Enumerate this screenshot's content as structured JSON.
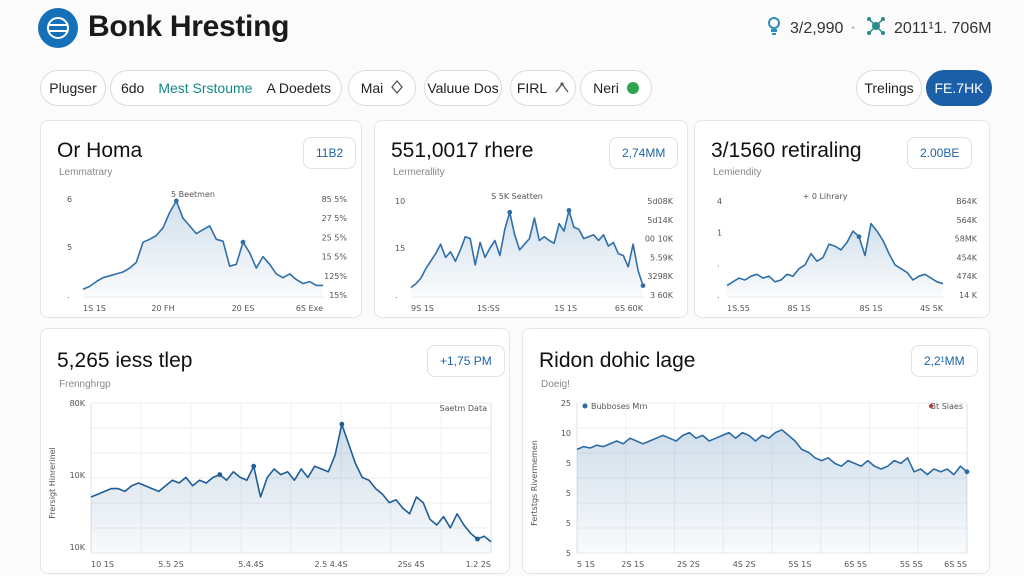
{
  "header": {
    "title": "Bonk Hresting",
    "stat1": "3/2,990",
    "stat2": "2011¹1. 706M",
    "logo_icon": "globe-icon",
    "stat1_icon": "lightbulb-icon",
    "stat2_icon": "network-icon"
  },
  "toolbar": {
    "pill1": "Plugser",
    "pill2_a": "6do",
    "pill2_b": "Mest Srstoume",
    "pill2_c": "A Doedets",
    "pill3": "Mai",
    "pill4": "Valuue Dos",
    "pill5": "FIRL",
    "pill6": "Neri",
    "pill7": "Trelings",
    "primary": "FE.7HK"
  },
  "cards": [
    {
      "title": "Or Homa",
      "subtitle": "Lemmatrary",
      "badge": "11B2",
      "yticks_left": [
        "6",
        "5",
        "."
      ],
      "yticks_right": [
        "85 5%",
        "27 5%",
        "25 5%",
        "15 5%",
        "125%",
        "15%"
      ],
      "xticks": [
        "1S 1S",
        "20 FH",
        "20 ES",
        "6S Exe"
      ],
      "legend": "5 Beetmen",
      "color": "#2f6fa8"
    },
    {
      "title": "551,0017 rhere",
      "subtitle": "Lermerallity",
      "badge": "2,74MM",
      "yticks_left": [
        "10",
        "15",
        "."
      ],
      "yticks_right": [
        "5d08K",
        "5d14K",
        "00 10K",
        "5.59K",
        "3298K",
        "3 60K"
      ],
      "xticks": [
        "9S 1S",
        "1S:SS",
        "1S 1S",
        "6S 60K"
      ],
      "legend": "S 5K Seatten",
      "color": "#2f6fa8"
    },
    {
      "title": "3/1560 retiraling",
      "subtitle": "Lemiendity",
      "badge": "2.00BE",
      "yticks_left": [
        "4",
        "1",
        ".",
        "."
      ],
      "yticks_right": [
        "B64K",
        "564K",
        "58MK",
        "454K",
        "474K",
        "14 K"
      ],
      "xticks": [
        "1S.55",
        "8S 1S",
        "8S 1S",
        "4S 5K"
      ],
      "legend": "+ 0 Lihrary",
      "color": "#2f6fa8"
    },
    {
      "title": "5,265 iess tlep",
      "subtitle": "Frennghrgp",
      "badge": "+1,75 PM",
      "ylabel": "Frersigt Hinrerinel",
      "yticks_left": [
        "80K",
        "10K",
        "10K"
      ],
      "xticks": [
        "10 1S",
        "5.5 2S",
        "5.4.4S",
        "2.5 4.4S",
        "2Ss 4S",
        "1.2 2S"
      ],
      "legend": "Saetm Data",
      "color": "#1f5d96"
    },
    {
      "title": "Ridon dohic lage",
      "subtitle": "Doeig!",
      "badge": "2,2¹MM",
      "ylabel": "Fertstgs Rivermemen",
      "yticks_left": [
        "25",
        "10",
        "5",
        "5",
        "5",
        "5"
      ],
      "xticks": [
        "5 1S",
        "2S 1S",
        "2S 2S",
        "4S 2S",
        "5S 1S",
        "6S 5S",
        "5S 5S",
        "6S 5S"
      ],
      "legend": "Bubboses Mrn",
      "legend_right": "Bt Siaes",
      "color": "#2b6aa3"
    }
  ],
  "chart_data": [
    {
      "type": "area",
      "series": [
        {
          "values": [
            6,
            9,
            14,
            18,
            20,
            22,
            24,
            28,
            34,
            55,
            58,
            62,
            70,
            86,
            98,
            80,
            72,
            64,
            68,
            72,
            58,
            56,
            30,
            32,
            55,
            44,
            28,
            40,
            32,
            22,
            18,
            22,
            16,
            12,
            14,
            10,
            10
          ]
        }
      ]
    },
    {
      "type": "area",
      "series": [
        {
          "values": [
            8,
            12,
            18,
            28,
            36,
            44,
            54,
            40,
            46,
            36,
            48,
            62,
            60,
            32,
            56,
            40,
            50,
            58,
            42,
            70,
            88,
            64,
            48,
            54,
            60,
            82,
            58,
            62,
            58,
            55,
            76,
            68,
            90,
            72,
            70,
            60,
            62,
            64,
            58,
            64,
            52,
            56,
            44,
            42,
            30,
            54,
            26,
            10
          ]
        }
      ]
    },
    {
      "type": "area",
      "series": [
        {
          "values": [
            10,
            14,
            18,
            16,
            20,
            22,
            18,
            20,
            14,
            16,
            22,
            20,
            28,
            32,
            44,
            36,
            40,
            54,
            52,
            48,
            56,
            68,
            62,
            42,
            76,
            68,
            58,
            44,
            32,
            28,
            24,
            16,
            20,
            22,
            18,
            14,
            12
          ]
        }
      ]
    },
    {
      "type": "area",
      "series": [
        {
          "values": [
            40,
            42,
            44,
            46,
            46,
            44,
            48,
            50,
            48,
            46,
            44,
            48,
            52,
            50,
            54,
            48,
            52,
            50,
            54,
            56,
            52,
            58,
            54,
            52,
            62,
            40,
            54,
            60,
            56,
            58,
            52,
            60,
            54,
            62,
            60,
            58,
            70,
            92,
            78,
            64,
            54,
            52,
            46,
            42,
            36,
            38,
            32,
            28,
            40,
            36,
            24,
            20,
            26,
            18,
            28,
            20,
            14,
            10,
            12,
            8
          ]
        }
      ]
    },
    {
      "type": "area",
      "series": [
        {
          "values": [
            74,
            76,
            75,
            77,
            76,
            78,
            80,
            78,
            82,
            80,
            78,
            80,
            82,
            84,
            82,
            80,
            84,
            86,
            82,
            84,
            80,
            82,
            84,
            86,
            82,
            86,
            84,
            80,
            84,
            82,
            86,
            88,
            84,
            80,
            74,
            72,
            68,
            66,
            68,
            64,
            62,
            66,
            64,
            62,
            66,
            62,
            60,
            62,
            66,
            64,
            68,
            58,
            60,
            56,
            60,
            58,
            60,
            56,
            62,
            58
          ]
        }
      ]
    }
  ]
}
